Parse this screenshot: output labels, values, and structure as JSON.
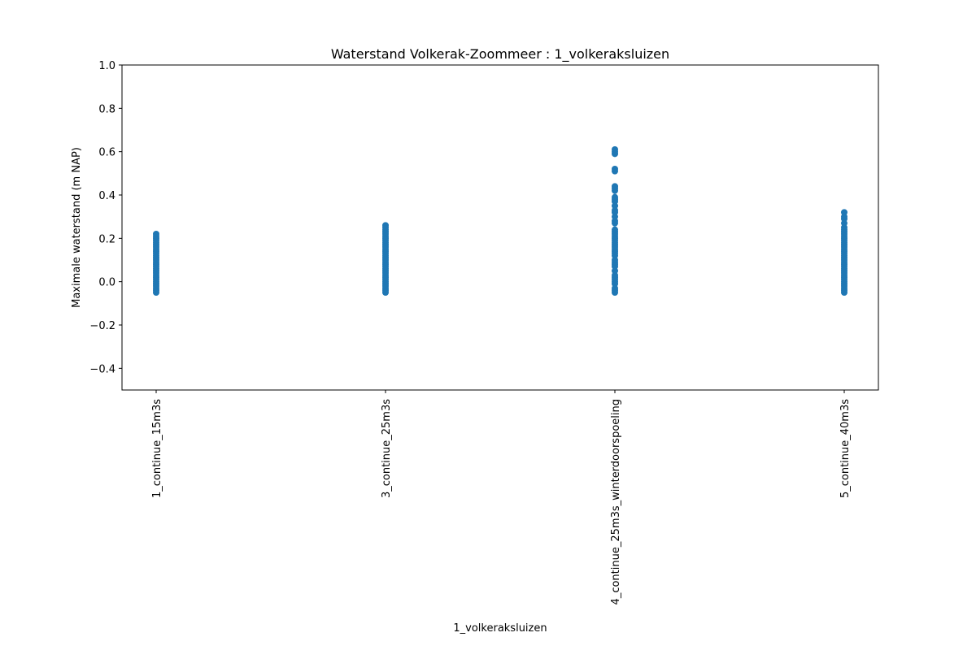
{
  "chart_data": {
    "type": "scatter",
    "title": "Waterstand Volkerak-Zoommeer : 1_volkeraksluizen",
    "xlabel": "1_volkeraksluizen",
    "ylabel": "Maximale waterstand (m NAP)",
    "ylim": [
      -0.5,
      1.0
    ],
    "yticks": [
      -0.4,
      -0.2,
      0.0,
      0.2,
      0.4,
      0.6,
      0.8,
      1.0
    ],
    "ytick_labels": [
      "−0.4",
      "−0.2",
      "0.0",
      "0.2",
      "0.4",
      "0.6",
      "0.8",
      "1.0"
    ],
    "grid": false,
    "point_color": "#1f77b4",
    "categories": [
      "1_continue_15m3s",
      "3_continue_25m3s",
      "4_continue_25m3s_winterdoorspoeling",
      "5_continue_40m3s"
    ],
    "series": [
      {
        "category": "1_continue_15m3s",
        "values": [
          -0.05,
          -0.04,
          -0.03,
          -0.02,
          -0.01,
          0.0,
          0.01,
          0.02,
          0.03,
          0.04,
          0.05,
          0.06,
          0.07,
          0.08,
          0.09,
          0.1,
          0.11,
          0.12,
          0.13,
          0.14,
          0.15,
          0.16,
          0.17,
          0.18,
          0.19,
          0.2,
          0.21,
          0.22
        ]
      },
      {
        "category": "3_continue_25m3s",
        "values": [
          -0.05,
          -0.04,
          -0.03,
          -0.02,
          -0.01,
          0.0,
          0.01,
          0.02,
          0.03,
          0.04,
          0.05,
          0.06,
          0.07,
          0.08,
          0.09,
          0.1,
          0.11,
          0.12,
          0.13,
          0.14,
          0.15,
          0.16,
          0.17,
          0.18,
          0.19,
          0.2,
          0.21,
          0.22,
          0.23,
          0.24,
          0.25,
          0.26
        ]
      },
      {
        "category": "4_continue_25m3s_winterdoorspoeling",
        "values": [
          -0.05,
          -0.04,
          -0.03,
          -0.01,
          0.0,
          0.01,
          0.02,
          0.03,
          0.05,
          0.07,
          0.08,
          0.09,
          0.1,
          0.12,
          0.13,
          0.14,
          0.15,
          0.16,
          0.17,
          0.18,
          0.19,
          0.2,
          0.21,
          0.22,
          0.23,
          0.24,
          0.27,
          0.28,
          0.3,
          0.32,
          0.33,
          0.35,
          0.37,
          0.38,
          0.39,
          0.42,
          0.43,
          0.44,
          0.51,
          0.52,
          0.59,
          0.6,
          0.61
        ]
      },
      {
        "category": "5_continue_40m3s",
        "values": [
          -0.05,
          -0.04,
          -0.03,
          -0.02,
          -0.01,
          0.0,
          0.01,
          0.02,
          0.03,
          0.04,
          0.05,
          0.06,
          0.07,
          0.08,
          0.09,
          0.1,
          0.11,
          0.12,
          0.13,
          0.14,
          0.15,
          0.16,
          0.17,
          0.18,
          0.19,
          0.2,
          0.21,
          0.22,
          0.23,
          0.24,
          0.25,
          0.27,
          0.29,
          0.3,
          0.32
        ]
      }
    ]
  }
}
